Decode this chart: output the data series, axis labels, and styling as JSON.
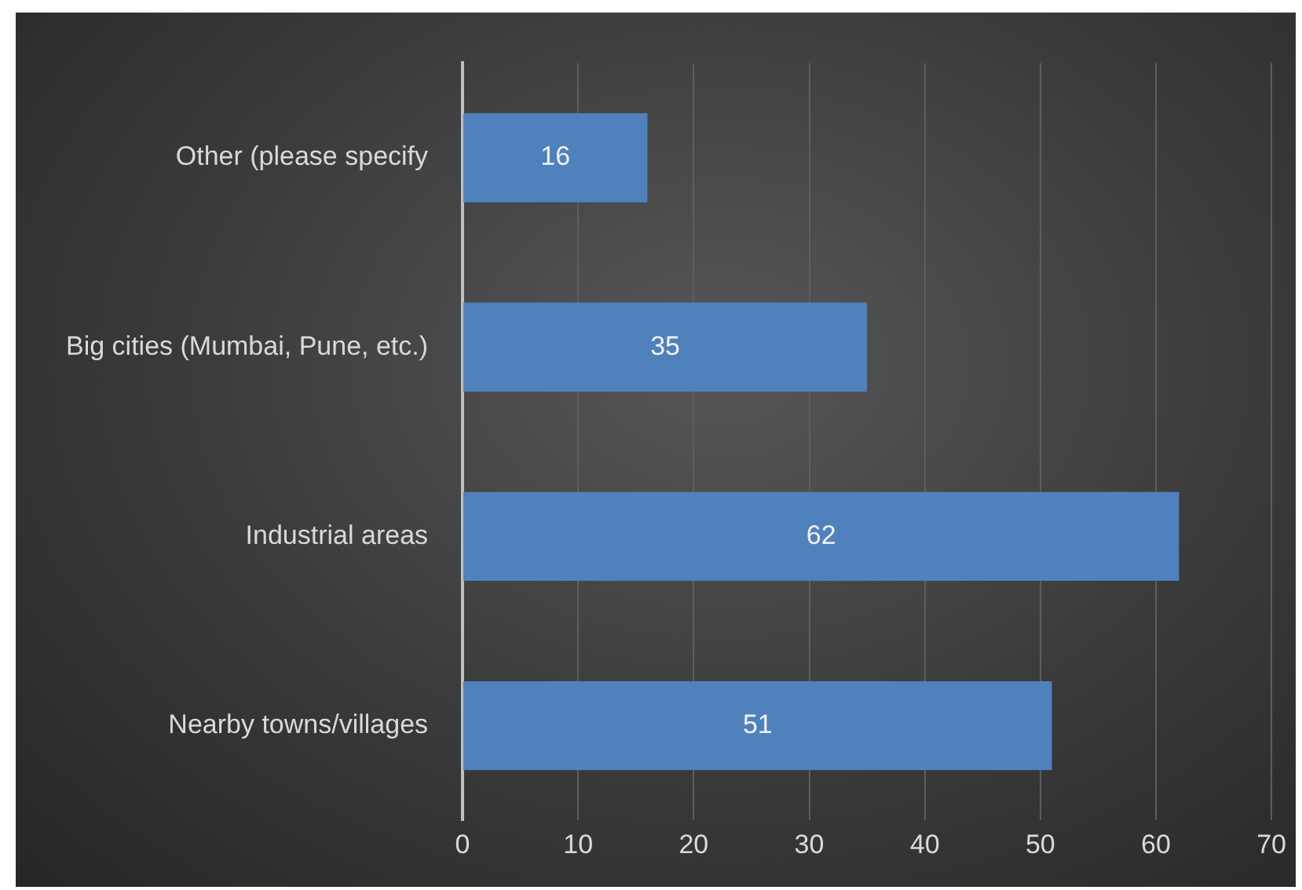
{
  "chart_data": {
    "type": "bar",
    "orientation": "horizontal",
    "categories": [
      "Other (please specify",
      "Big cities (Mumbai, Pune, etc.)",
      "Industrial areas",
      "Nearby towns/villages"
    ],
    "values": [
      16,
      35,
      62,
      51
    ],
    "color": "#4f81bd",
    "xlim": [
      0,
      70
    ],
    "xticks": [
      0,
      10,
      20,
      30,
      40,
      50,
      60,
      70
    ],
    "grid": "x",
    "data_labels": true,
    "legend": false
  }
}
